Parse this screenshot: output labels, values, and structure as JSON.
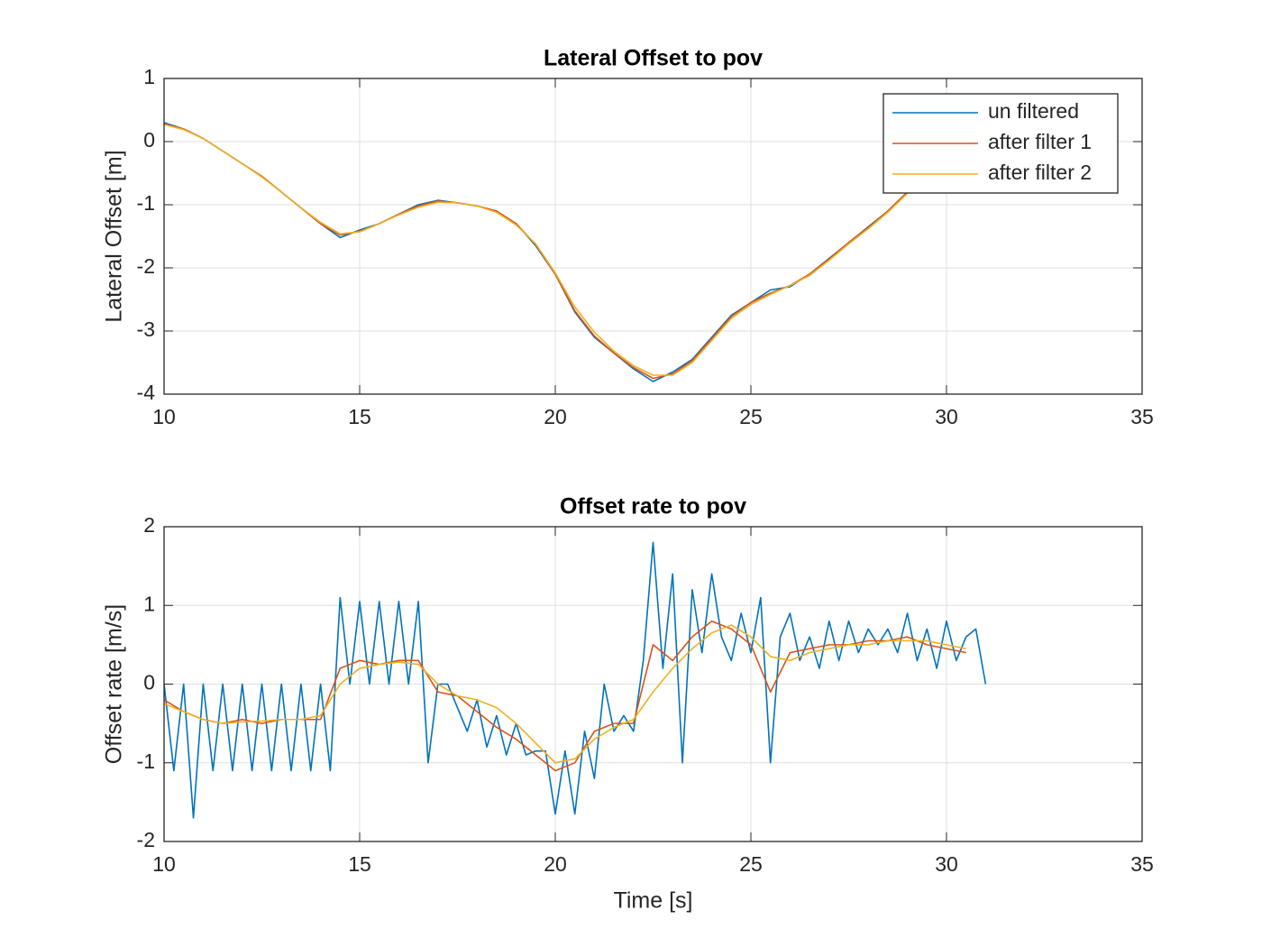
{
  "chart_data": [
    {
      "type": "line",
      "title": "Lateral Offset to pov",
      "ylabel": "Lateral Offset [m]",
      "x": [
        10,
        10.5,
        11,
        11.5,
        12,
        12.5,
        13,
        13.5,
        14,
        14.5,
        15,
        15.5,
        16,
        16.5,
        17,
        17.5,
        18,
        18.5,
        19,
        19.5,
        20,
        20.5,
        21,
        21.5,
        22,
        22.5,
        23,
        23.5,
        24,
        24.5,
        25,
        25.5,
        26,
        26.5,
        27,
        27.5,
        28,
        28.5,
        29,
        29.5,
        30,
        30.5,
        31
      ],
      "series": [
        {
          "name": "un filtered",
          "color": "#0072BD",
          "values": [
            0.3,
            0.2,
            0.05,
            -0.15,
            -0.35,
            -0.55,
            -0.8,
            -1.05,
            -1.3,
            -1.52,
            -1.4,
            -1.3,
            -1.15,
            -1.0,
            -0.93,
            -0.97,
            -1.02,
            -1.1,
            -1.3,
            -1.65,
            -2.1,
            -2.7,
            -3.1,
            -3.35,
            -3.6,
            -3.8,
            -3.65,
            -3.45,
            -3.1,
            -2.75,
            -2.55,
            -2.35,
            -2.3,
            -2.1,
            -1.85,
            -1.6,
            -1.35,
            -1.1,
            -0.8,
            -0.5,
            -0.2,
            0.05,
            0.3
          ]
        },
        {
          "name": "after filter 1",
          "color": "#D95319",
          "values": [
            0.28,
            0.2,
            0.05,
            -0.15,
            -0.35,
            -0.55,
            -0.8,
            -1.05,
            -1.3,
            -1.48,
            -1.42,
            -1.3,
            -1.15,
            -1.02,
            -0.94,
            -0.97,
            -1.02,
            -1.1,
            -1.3,
            -1.63,
            -2.1,
            -2.68,
            -3.08,
            -3.35,
            -3.58,
            -3.75,
            -3.68,
            -3.47,
            -3.12,
            -2.77,
            -2.55,
            -2.4,
            -2.28,
            -2.1,
            -1.86,
            -1.6,
            -1.36,
            -1.1,
            -0.8,
            -0.5,
            -0.22,
            0.03,
            0.28
          ]
        },
        {
          "name": "after filter 2",
          "color": "#EDB120",
          "values": [
            0.27,
            0.19,
            0.05,
            -0.15,
            -0.35,
            -0.56,
            -0.8,
            -1.05,
            -1.28,
            -1.46,
            -1.43,
            -1.3,
            -1.16,
            -1.04,
            -0.96,
            -0.97,
            -1.02,
            -1.12,
            -1.32,
            -1.62,
            -2.08,
            -2.62,
            -3.02,
            -3.32,
            -3.55,
            -3.7,
            -3.7,
            -3.5,
            -3.15,
            -2.8,
            -2.58,
            -2.42,
            -2.28,
            -2.12,
            -1.88,
            -1.62,
            -1.38,
            -1.12,
            -0.82,
            -0.52,
            -0.25,
            0.0,
            0.25
          ]
        }
      ],
      "xlim": [
        10,
        35
      ],
      "xticks": [
        10,
        15,
        20,
        25,
        30,
        35
      ],
      "ylim": [
        -4,
        1
      ],
      "yticks": [
        -4,
        -3,
        -2,
        -1,
        0,
        1
      ],
      "grid": true,
      "legend": "northeast"
    },
    {
      "type": "line",
      "title": "Offset rate to pov",
      "ylabel": "Offset rate [m/s]",
      "xlabel": "Time [s]",
      "series": [
        {
          "color": "#0072BD",
          "x": [
            10,
            10.25,
            10.5,
            10.75,
            11,
            11.25,
            11.5,
            11.75,
            12,
            12.25,
            12.5,
            12.75,
            13,
            13.25,
            13.5,
            13.75,
            14,
            14.25,
            14.5,
            14.75,
            15,
            15.25,
            15.5,
            15.75,
            16,
            16.25,
            16.5,
            16.75,
            17,
            17.25,
            17.5,
            17.75,
            18,
            18.25,
            18.5,
            18.75,
            19,
            19.25,
            19.5,
            19.75,
            20,
            20.25,
            20.5,
            20.75,
            21,
            21.25,
            21.5,
            21.75,
            22,
            22.25,
            22.5,
            22.75,
            23,
            23.25,
            23.5,
            23.75,
            24,
            24.25,
            24.5,
            24.75,
            25,
            25.25,
            25.5,
            25.75,
            26,
            26.25,
            26.5,
            26.75,
            27,
            27.25,
            27.5,
            27.75,
            28,
            28.25,
            28.5,
            28.75,
            29,
            29.25,
            29.5,
            29.75,
            30,
            30.25,
            30.5,
            30.75,
            31
          ],
          "values": [
            0,
            -1.1,
            0,
            -1.7,
            0,
            -1.1,
            0,
            -1.1,
            0,
            -1.1,
            0,
            -1.1,
            0,
            -1.1,
            0,
            -1.1,
            0,
            -1.1,
            1.1,
            0,
            1.05,
            0,
            1.05,
            0,
            1.05,
            0,
            1.05,
            -1.0,
            0,
            0,
            -0.3,
            -0.6,
            -0.2,
            -0.8,
            -0.4,
            -0.9,
            -0.5,
            -0.9,
            -0.85,
            -0.85,
            -1.65,
            -0.85,
            -1.65,
            -0.6,
            -1.2,
            0,
            -0.6,
            -0.4,
            -0.6,
            0.3,
            1.8,
            0.2,
            1.4,
            -1.0,
            1.2,
            0.4,
            1.4,
            0.6,
            0.3,
            0.9,
            0.4,
            1.1,
            -1.0,
            0.6,
            0.9,
            0.3,
            0.6,
            0.2,
            0.8,
            0.3,
            0.8,
            0.4,
            0.7,
            0.5,
            0.7,
            0.4,
            0.9,
            0.3,
            0.7,
            0.2,
            0.8,
            0.3,
            0.6,
            0.7,
            0
          ]
        },
        {
          "color": "#D95319",
          "x": [
            10,
            10.5,
            11,
            11.5,
            12,
            12.5,
            13,
            13.5,
            14,
            14.5,
            15,
            15.5,
            16,
            16.5,
            17,
            17.5,
            18,
            18.5,
            19,
            19.5,
            20,
            20.5,
            21,
            21.5,
            22,
            22.5,
            23,
            23.5,
            24,
            24.5,
            25,
            25.5,
            26,
            26.5,
            27,
            27.5,
            28,
            28.5,
            29,
            29.5,
            30,
            30.5
          ],
          "values": [
            -0.2,
            -0.35,
            -0.45,
            -0.5,
            -0.45,
            -0.5,
            -0.45,
            -0.45,
            -0.45,
            0.2,
            0.3,
            0.25,
            0.3,
            0.3,
            -0.1,
            -0.15,
            -0.35,
            -0.55,
            -0.7,
            -0.9,
            -1.1,
            -1.0,
            -0.6,
            -0.5,
            -0.5,
            0.5,
            0.3,
            0.6,
            0.8,
            0.7,
            0.5,
            -0.1,
            0.4,
            0.45,
            0.5,
            0.5,
            0.55,
            0.55,
            0.6,
            0.5,
            0.45,
            0.4
          ]
        },
        {
          "color": "#EDB120",
          "x": [
            10,
            10.5,
            11,
            11.5,
            12,
            12.5,
            13,
            13.5,
            14,
            14.5,
            15,
            15.5,
            16,
            16.5,
            17,
            17.5,
            18,
            18.5,
            19,
            19.5,
            20,
            20.5,
            21,
            21.5,
            22,
            22.5,
            23,
            23.5,
            24,
            24.5,
            25,
            25.5,
            26,
            26.5,
            27,
            27.5,
            28,
            28.5,
            29,
            29.5,
            30,
            30.5
          ],
          "values": [
            -0.25,
            -0.35,
            -0.45,
            -0.5,
            -0.48,
            -0.47,
            -0.45,
            -0.45,
            -0.4,
            0.0,
            0.2,
            0.25,
            0.28,
            0.25,
            0.0,
            -0.15,
            -0.2,
            -0.3,
            -0.5,
            -0.75,
            -1.0,
            -0.95,
            -0.7,
            -0.55,
            -0.45,
            -0.1,
            0.2,
            0.45,
            0.65,
            0.75,
            0.6,
            0.35,
            0.3,
            0.4,
            0.45,
            0.5,
            0.5,
            0.55,
            0.55,
            0.55,
            0.5,
            0.45
          ]
        }
      ],
      "xlim": [
        10,
        35
      ],
      "xticks": [
        10,
        15,
        20,
        25,
        30,
        35
      ],
      "ylim": [
        -2,
        2
      ],
      "yticks": [
        -2,
        -1,
        0,
        1,
        2
      ],
      "grid": true
    }
  ]
}
